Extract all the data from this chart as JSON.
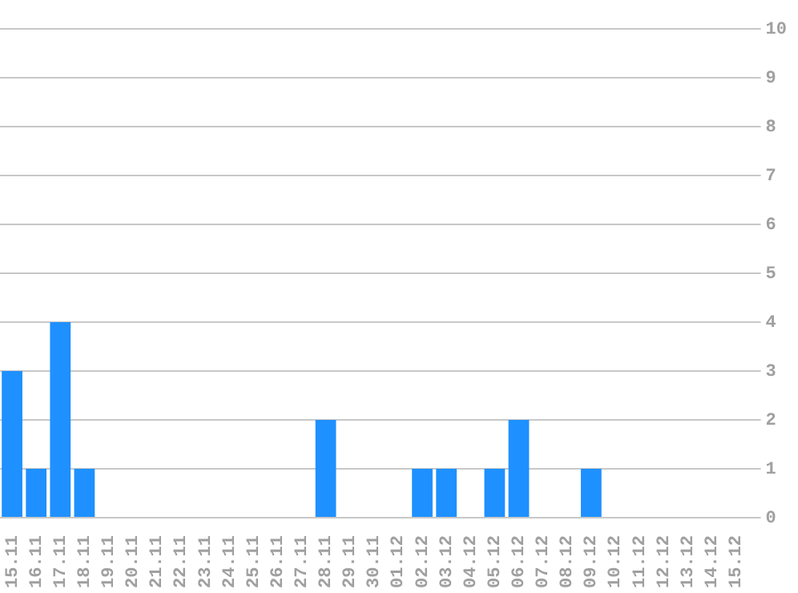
{
  "chart_data": {
    "type": "bar",
    "categories": [
      "15.11",
      "16.11",
      "17.11",
      "18.11",
      "19.11",
      "20.11",
      "21.11",
      "22.11",
      "23.11",
      "24.11",
      "25.11",
      "26.11",
      "27.11",
      "28.11",
      "29.11",
      "30.11",
      "01.12",
      "02.12",
      "03.12",
      "04.12",
      "05.12",
      "06.12",
      "07.12",
      "08.12",
      "09.12",
      "10.12",
      "11.12",
      "12.12",
      "13.12",
      "14.12",
      "15.12"
    ],
    "values": [
      3,
      1,
      4,
      1,
      0,
      0,
      0,
      0,
      0,
      0,
      0,
      0,
      0,
      2,
      0,
      0,
      0,
      1,
      1,
      0,
      1,
      2,
      0,
      0,
      1,
      0,
      0,
      0,
      0,
      0,
      0
    ],
    "color": "#1e90ff",
    "ylim": [
      0,
      10
    ],
    "yticks": [
      0,
      1,
      2,
      3,
      4,
      5,
      6,
      7,
      8,
      9,
      10
    ],
    "grid": "y",
    "legend": false
  }
}
